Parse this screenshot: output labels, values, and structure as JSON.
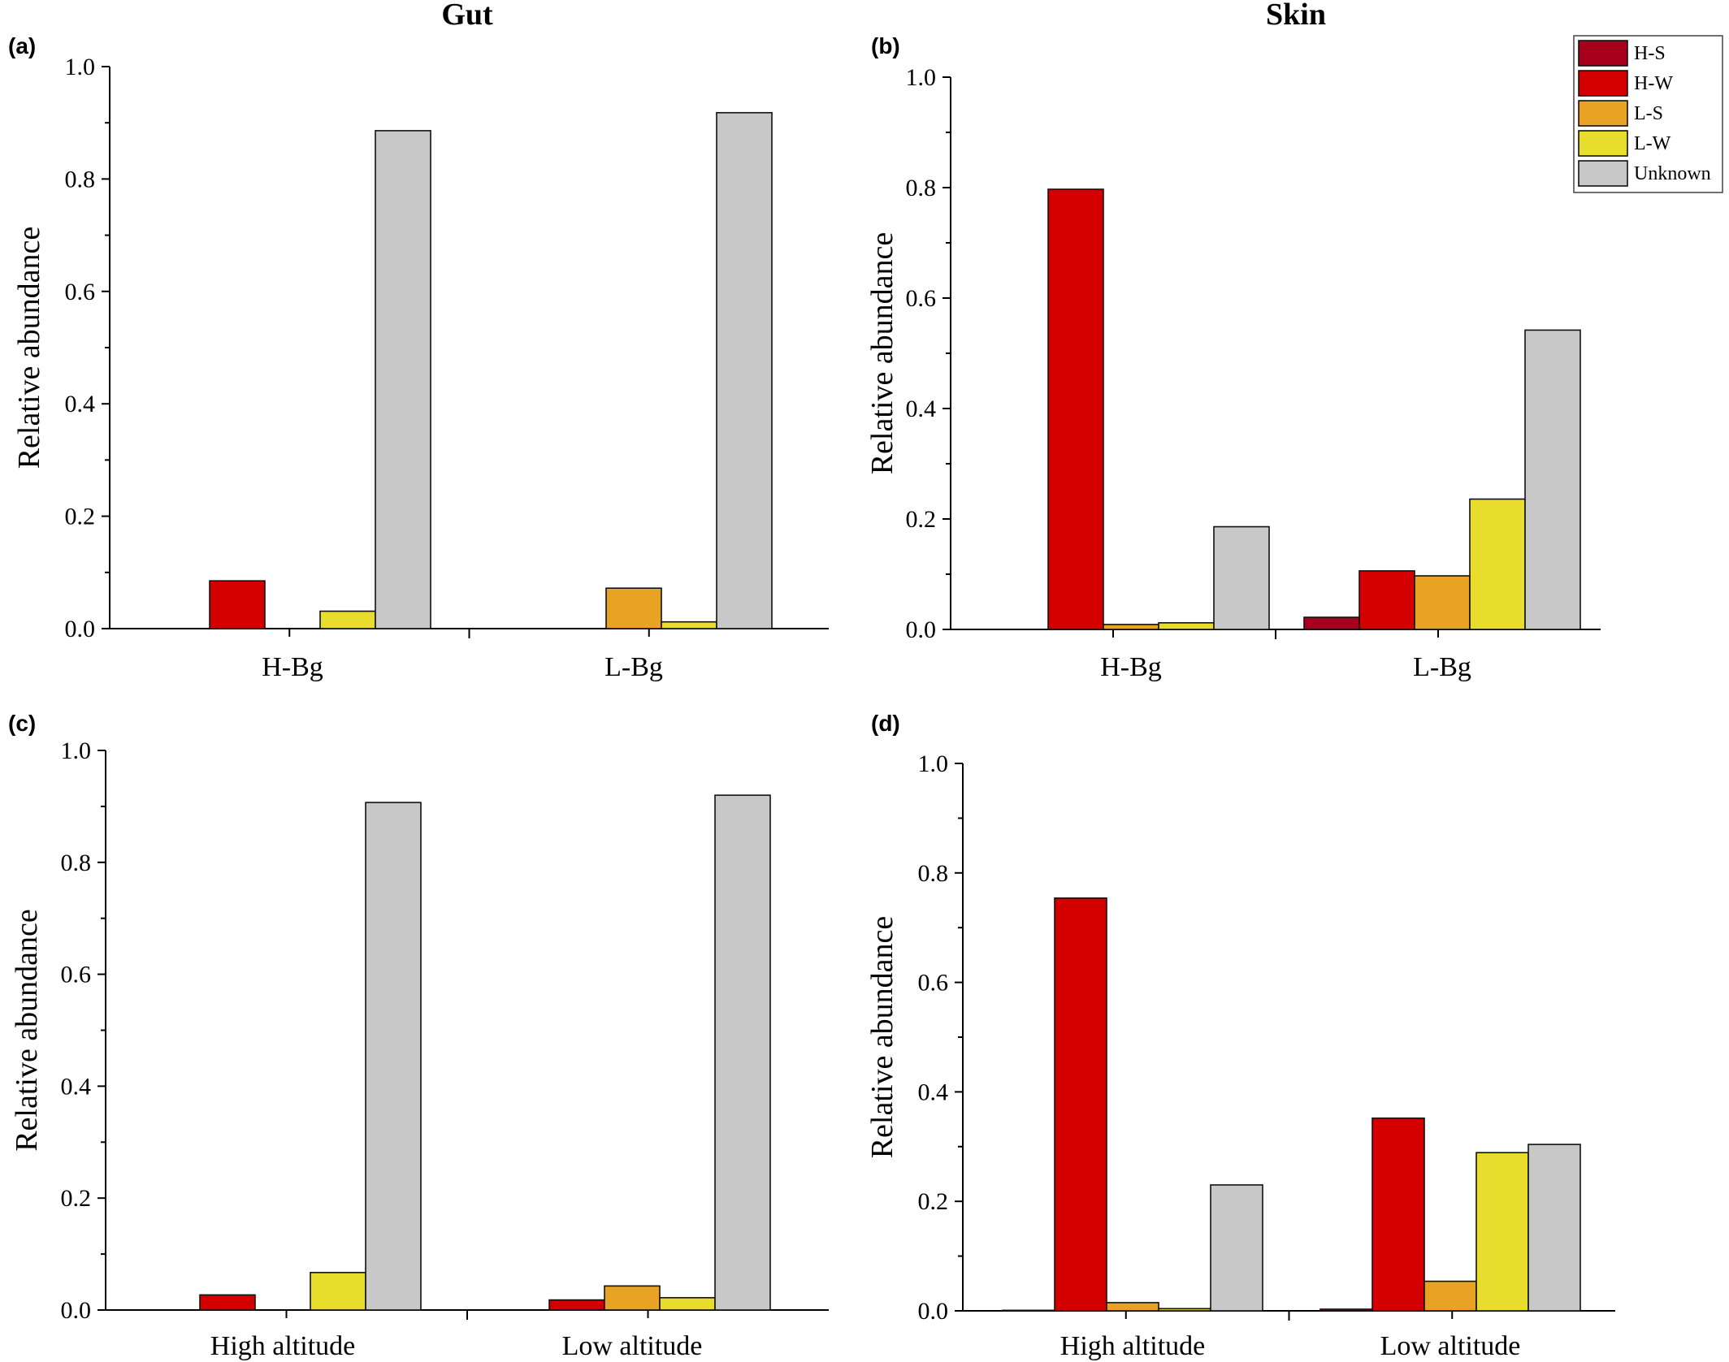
{
  "column_titles": [
    "Gut",
    "Skin"
  ],
  "legend": {
    "entries": [
      {
        "label": "H-S",
        "color": "#a8001c"
      },
      {
        "label": "H-W",
        "color": "#d40000"
      },
      {
        "label": "L-S",
        "color": "#e8a224"
      },
      {
        "label": "L-W",
        "color": "#e8dc2c"
      },
      {
        "label": "Unknown",
        "color": "#c8c8c8"
      }
    ]
  },
  "chart_data": [
    {
      "panel": "(a)",
      "type": "bar",
      "ylabel": "Relative abundance",
      "ylim": [
        0,
        1.0
      ],
      "yticks": [
        "0.0",
        "0.2",
        "0.4",
        "0.6",
        "0.8",
        "1.0"
      ],
      "categories": [
        "H-Bg",
        "L-Bg"
      ],
      "series": [
        {
          "name": "H-S",
          "values": [
            0,
            0
          ]
        },
        {
          "name": "H-W",
          "values": [
            0.085,
            0
          ]
        },
        {
          "name": "L-S",
          "values": [
            0,
            0.072
          ]
        },
        {
          "name": "L-W",
          "values": [
            0.031,
            0.012
          ]
        },
        {
          "name": "Unknown",
          "values": [
            0.886,
            0.918
          ]
        }
      ]
    },
    {
      "panel": "(b)",
      "type": "bar",
      "ylabel": "Relative abundance",
      "ylim": [
        0,
        1.0
      ],
      "yticks": [
        "0.0",
        "0.2",
        "0.4",
        "0.6",
        "0.8",
        "1.0"
      ],
      "categories": [
        "H-Bg",
        "L-Bg"
      ],
      "series": [
        {
          "name": "H-S",
          "values": [
            0,
            0.022
          ]
        },
        {
          "name": "H-W",
          "values": [
            0.797,
            0.106
          ]
        },
        {
          "name": "L-S",
          "values": [
            0.009,
            0.097
          ]
        },
        {
          "name": "L-W",
          "values": [
            0.012,
            0.236
          ]
        },
        {
          "name": "Unknown",
          "values": [
            0.186,
            0.542
          ]
        }
      ]
    },
    {
      "panel": "(c)",
      "type": "bar",
      "ylabel": "Relative abundance",
      "ylim": [
        0,
        1.0
      ],
      "yticks": [
        "0.0",
        "0.2",
        "0.4",
        "0.6",
        "0.8",
        "1.0"
      ],
      "categories": [
        "High altitude",
        "Low altitude"
      ],
      "series": [
        {
          "name": "H-S",
          "values": [
            0,
            0
          ]
        },
        {
          "name": "H-W",
          "values": [
            0.027,
            0.018
          ]
        },
        {
          "name": "L-S",
          "values": [
            0,
            0.043
          ]
        },
        {
          "name": "L-W",
          "values": [
            0.067,
            0.022
          ]
        },
        {
          "name": "Unknown",
          "values": [
            0.907,
            0.92
          ]
        }
      ]
    },
    {
      "panel": "(d)",
      "type": "bar",
      "ylabel": "Relative abundance",
      "ylim": [
        0,
        1.0
      ],
      "yticks": [
        "0.0",
        "0.2",
        "0.4",
        "0.6",
        "0.8",
        "1.0"
      ],
      "categories": [
        "High altitude",
        "Low altitude"
      ],
      "series": [
        {
          "name": "H-S",
          "values": [
            0.001,
            0.003
          ]
        },
        {
          "name": "H-W",
          "values": [
            0.754,
            0.352
          ]
        },
        {
          "name": "L-S",
          "values": [
            0.015,
            0.054
          ]
        },
        {
          "name": "L-W",
          "values": [
            0.004,
            0.289
          ]
        },
        {
          "name": "Unknown",
          "values": [
            0.23,
            0.304
          ]
        }
      ]
    }
  ]
}
